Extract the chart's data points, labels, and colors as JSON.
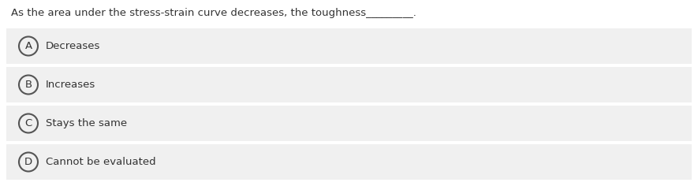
{
  "question": "As the area under the stress-strain curve decreases, the toughness_________.",
  "options": [
    {
      "label": "A",
      "text": "Decreases"
    },
    {
      "label": "B",
      "text": "Increases"
    },
    {
      "label": "C",
      "text": "Stays the same"
    },
    {
      "label": "D",
      "text": "Cannot be evaluated"
    }
  ],
  "bg_color": "#ffffff",
  "option_bg_color": "#f0f0f0",
  "text_color": "#333333",
  "circle_edge_color": "#555555",
  "circle_face_color": "#f0f0f0",
  "question_fontsize": 9.5,
  "option_fontsize": 9.5,
  "label_fontsize": 9.5,
  "fig_width": 8.85,
  "fig_height": 2.36,
  "dpi": 100
}
